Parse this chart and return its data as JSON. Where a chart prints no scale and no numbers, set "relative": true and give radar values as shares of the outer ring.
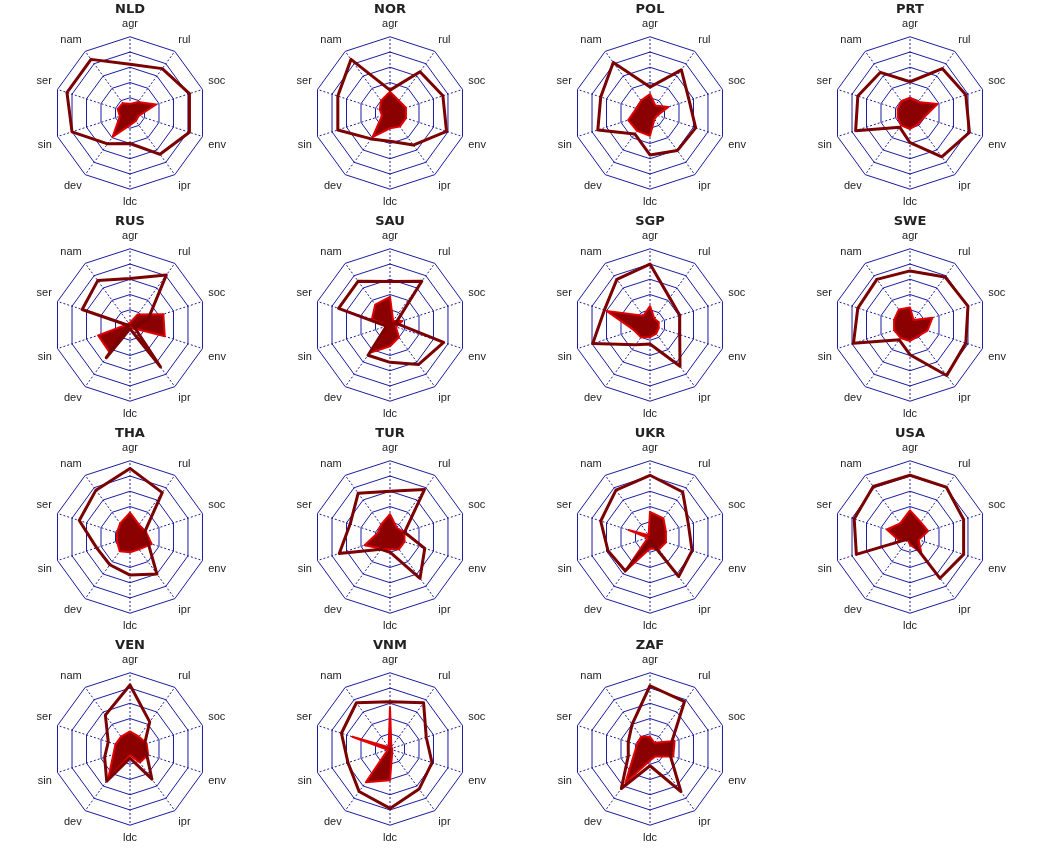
{
  "chart_data": [
    {
      "type": "radar",
      "title": "NLD",
      "categories": [
        "agr",
        "rul",
        "soc",
        "env",
        "ipr",
        "ldc",
        "dev",
        "sin",
        "ser",
        "nam"
      ],
      "relative": true,
      "grid": true,
      "marker": "none",
      "series": [
        {
          "color": "#7b0000",
          "values": [
            0.64,
            0.72,
            0.82,
            0.82,
            0.67,
            0.4,
            0.5,
            0.8,
            0.87,
            0.87
          ]
        },
        {
          "type": "area",
          "color": "#8b0000",
          "values": [
            0.12,
            0.18,
            0.36,
            0.12,
            0.13,
            0.16,
            0.39,
            0.14,
            0.17,
            0.16
          ]
        }
      ]
    },
    {
      "type": "radar",
      "title": "NOR",
      "categories": [
        "agr",
        "rul",
        "soc",
        "env",
        "ipr",
        "ldc",
        "dev",
        "sin",
        "ser",
        "nam"
      ],
      "relative": true,
      "grid": true,
      "marker": "none",
      "series": [
        {
          "color": "#7b0000",
          "values": [
            0.3,
            0.67,
            0.73,
            0.78,
            0.52,
            0.37,
            0.42,
            0.72,
            0.72,
            0.87
          ]
        },
        {
          "type": "area",
          "color": "#8b0000",
          "values": [
            0.28,
            0.2,
            0.22,
            0.22,
            0.22,
            0.2,
            0.39,
            0.11,
            0.14,
            0.2
          ]
        }
      ]
    },
    {
      "type": "radar",
      "title": "POL",
      "categories": [
        "agr",
        "rul",
        "soc",
        "env",
        "ipr",
        "ldc",
        "dev",
        "sin",
        "ser",
        "nam"
      ],
      "relative": true,
      "grid": true,
      "marker": "none",
      "series": [
        {
          "color": "#7b0000",
          "values": [
            0.34,
            0.7,
            0.54,
            0.63,
            0.61,
            0.55,
            0.34,
            0.72,
            0.68,
            0.82
          ]
        },
        {
          "type": "area",
          "color": "#8b0000",
          "values": [
            0.25,
            0.12,
            0.25,
            0.1,
            0.1,
            0.3,
            0.29,
            0.3,
            0.19,
            0.2
          ]
        }
      ]
    },
    {
      "type": "radar",
      "title": "PRT",
      "categories": [
        "agr",
        "rul",
        "soc",
        "env",
        "ipr",
        "ldc",
        "dev",
        "sin",
        "ser",
        "nam"
      ],
      "relative": true,
      "grid": true,
      "marker": "none",
      "series": [
        {
          "color": "#7b0000",
          "values": [
            0.41,
            0.72,
            0.77,
            0.82,
            0.71,
            0.39,
            0.23,
            0.75,
            0.72,
            0.66
          ]
        },
        {
          "type": "area",
          "color": "#8b0000",
          "values": [
            0.2,
            0.18,
            0.38,
            0.19,
            0.18,
            0.21,
            0.2,
            0.17,
            0.17,
            0.19
          ]
        }
      ]
    },
    {
      "type": "radar",
      "title": "RUS",
      "categories": [
        "agr",
        "rul",
        "soc",
        "env",
        "ipr",
        "ldc",
        "dev",
        "sin",
        "ser",
        "nam"
      ],
      "relative": true,
      "grid": true,
      "marker": "none",
      "series": [
        {
          "color": "#7b0000",
          "values": [
            0.61,
            0.81,
            0.25,
            0.05,
            0.68,
            0.05,
            0.53,
            0.02,
            0.66,
            0.72
          ]
        },
        {
          "type": "area",
          "color": "#8b0000",
          "values": [
            0.03,
            0.17,
            0.46,
            0.48,
            0.05,
            0.03,
            0.45,
            0.44,
            0.03,
            0.03
          ]
        }
      ]
    },
    {
      "type": "radar",
      "title": "SAU",
      "categories": [
        "agr",
        "rul",
        "soc",
        "env",
        "ipr",
        "ldc",
        "dev",
        "sin",
        "ser",
        "nam"
      ],
      "relative": true,
      "grid": true,
      "marker": "none",
      "series": [
        {
          "color": "#7b0000",
          "values": [
            0.57,
            0.71,
            0.08,
            0.74,
            0.64,
            0.49,
            0.49,
            0.05,
            0.71,
            0.71
          ]
        },
        {
          "type": "area",
          "color": "#8b0000",
          "values": [
            0.37,
            0.07,
            0.17,
            0.08,
            0.2,
            0.28,
            0.45,
            0.04,
            0.25,
            0.33
          ]
        }
      ]
    },
    {
      "type": "radar",
      "title": "SGP",
      "categories": [
        "agr",
        "rul",
        "soc",
        "env",
        "ipr",
        "ldc",
        "dev",
        "sin",
        "ser",
        "nam"
      ],
      "relative": true,
      "grid": true,
      "marker": "none",
      "series": [
        {
          "color": "#7b0000",
          "values": [
            0.8,
            0.44,
            0.41,
            0.41,
            0.67,
            0.25,
            0.32,
            0.79,
            0.63,
            0.74
          ]
        },
        {
          "type": "area",
          "color": "#8b0000",
          "values": [
            0.25,
            0.1,
            0.12,
            0.12,
            0.14,
            0.16,
            0.2,
            0.22,
            0.6,
            0.15
          ]
        }
      ]
    },
    {
      "type": "radar",
      "title": "SWE",
      "categories": [
        "agr",
        "rul",
        "soc",
        "env",
        "ipr",
        "ldc",
        "dev",
        "sin",
        "ser",
        "nam"
      ],
      "relative": true,
      "grid": true,
      "marker": "none",
      "series": [
        {
          "color": "#7b0000",
          "values": [
            0.71,
            0.78,
            0.8,
            0.77,
            0.82,
            0.39,
            0.24,
            0.78,
            0.72,
            0.74
          ]
        },
        {
          "type": "area",
          "color": "#8b0000",
          "values": [
            0.23,
            0.08,
            0.31,
            0.24,
            0.18,
            0.21,
            0.21,
            0.22,
            0.22,
            0.25
          ]
        }
      ]
    },
    {
      "type": "radar",
      "title": "THA",
      "categories": [
        "agr",
        "rul",
        "soc",
        "env",
        "ipr",
        "ldc",
        "dev",
        "sin",
        "ser",
        "nam"
      ],
      "relative": true,
      "grid": true,
      "marker": "none",
      "series": [
        {
          "color": "#7b0000",
          "values": [
            0.9,
            0.72,
            0.2,
            0.25,
            0.6,
            0.5,
            0.45,
            0.46,
            0.7,
            0.76
          ]
        },
        {
          "type": "area",
          "color": "#8b0000",
          "values": [
            0.32,
            0.2,
            0.22,
            0.3,
            0.2,
            0.2,
            0.23,
            0.18,
            0.18,
            0.22
          ]
        }
      ]
    },
    {
      "type": "radar",
      "title": "TUR",
      "categories": [
        "agr",
        "rul",
        "soc",
        "env",
        "ipr",
        "ldc",
        "dev",
        "sin",
        "ser",
        "nam"
      ],
      "relative": true,
      "grid": true,
      "marker": "none",
      "series": [
        {
          "color": "#7b0000",
          "values": [
            0.6,
            0.77,
            0.2,
            0.48,
            0.67,
            0.2,
            0.2,
            0.7,
            0.55,
            0.71
          ]
        },
        {
          "type": "area",
          "color": "#8b0000",
          "values": [
            0.3,
            0.15,
            0.2,
            0.2,
            0.2,
            0.16,
            0.19,
            0.35,
            0.17,
            0.2
          ]
        }
      ]
    },
    {
      "type": "radar",
      "title": "UKR",
      "categories": [
        "agr",
        "rul",
        "soc",
        "env",
        "ipr",
        "ldc",
        "dev",
        "sin",
        "ser",
        "nam"
      ],
      "relative": true,
      "grid": true,
      "marker": "none",
      "series": [
        {
          "color": "#7b0000",
          "values": [
            0.81,
            0.73,
            0.53,
            0.58,
            0.64,
            0.05,
            0.55,
            0.58,
            0.68,
            0.76
          ]
        },
        {
          "type": "area",
          "color": "#8b0000",
          "values": [
            0.33,
            0.3,
            0.22,
            0.22,
            0.2,
            0.15,
            0.56,
            0.03,
            0.3,
            0.03
          ]
        }
      ]
    },
    {
      "type": "radar",
      "title": "USA",
      "categories": [
        "agr",
        "rul",
        "soc",
        "env",
        "ipr",
        "ldc",
        "dev",
        "sin",
        "ser",
        "nam"
      ],
      "relative": true,
      "grid": true,
      "marker": "none",
      "series": [
        {
          "color": "#7b0000",
          "values": [
            0.81,
            0.81,
            0.74,
            0.74,
            0.67,
            0.03,
            0.03,
            0.74,
            0.77,
            0.82
          ]
        },
        {
          "type": "area",
          "color": "#8b0000",
          "values": [
            0.35,
            0.24,
            0.25,
            0.12,
            0.25,
            0.1,
            0.05,
            0.15,
            0.32,
            0.22
          ]
        }
      ]
    },
    {
      "type": "radar",
      "title": "VEN",
      "categories": [
        "agr",
        "rul",
        "soc",
        "env",
        "ipr",
        "ldc",
        "dev",
        "sin",
        "ser",
        "nam"
      ],
      "relative": true,
      "grid": true,
      "marker": "none",
      "series": [
        {
          "color": "#7b0000",
          "values": [
            0.84,
            0.44,
            0.2,
            0.23,
            0.49,
            0.12,
            0.52,
            0.35,
            0.3,
            0.55
          ]
        },
        {
          "type": "area",
          "color": "#8b0000",
          "values": [
            0.23,
            0.2,
            0.23,
            0.25,
            0.22,
            0.08,
            0.49,
            0.23,
            0.2,
            0.2
          ]
        }
      ]
    },
    {
      "type": "radar",
      "title": "VNM",
      "categories": [
        "agr",
        "rul",
        "soc",
        "env",
        "ipr",
        "ldc",
        "dev",
        "sin",
        "ser",
        "nam"
      ],
      "relative": true,
      "grid": true,
      "marker": "none",
      "series": [
        {
          "color": "#7b0000",
          "values": [
            0.62,
            0.75,
            0.5,
            0.58,
            0.65,
            0.78,
            0.69,
            0.58,
            0.67,
            0.75
          ]
        },
        {
          "type": "area",
          "color": "#8b0000",
          "values": [
            0.55,
            0.03,
            0.03,
            0.03,
            0.05,
            0.41,
            0.54,
            0.03,
            0.52,
            0.03
          ]
        }
      ]
    },
    {
      "type": "radar",
      "title": "ZAF",
      "categories": [
        "agr",
        "rul",
        "soc",
        "env",
        "ipr",
        "ldc",
        "dev",
        "sin",
        "ser",
        "nam"
      ],
      "relative": true,
      "grid": true,
      "marker": "none",
      "series": [
        {
          "color": "#7b0000",
          "values": [
            0.83,
            0.77,
            0.3,
            0.28,
            0.69,
            0.22,
            0.64,
            0.3,
            0.3,
            0.4
          ]
        },
        {
          "type": "area",
          "color": "#8b0000",
          "values": [
            0.16,
            0.1,
            0.34,
            0.32,
            0.12,
            0.15,
            0.55,
            0.22,
            0.18,
            0.2
          ]
        }
      ]
    }
  ]
}
